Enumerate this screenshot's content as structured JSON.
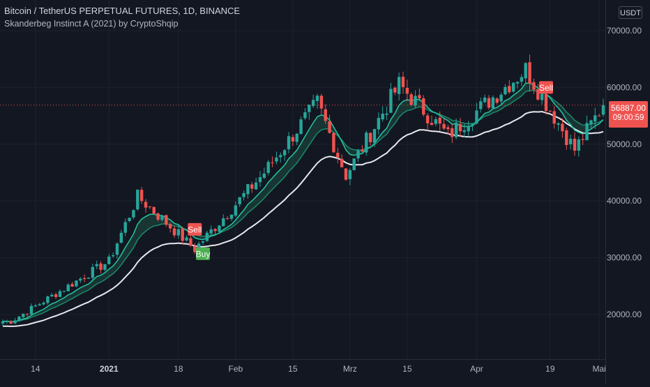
{
  "header": {
    "symbol_title": "Bitcoin / TetherUS PERPETUAL FUTURES, 1D, BINANCE",
    "indicator_title": "Skanderbeg Instinct A (2021) by CryptoShqip",
    "currency_button": "USDT"
  },
  "price_tag": {
    "price": "56887.00",
    "countdown": "09:00:59",
    "color": "#ef5350"
  },
  "colors": {
    "background": "#131722",
    "up_candle": "#26a69a",
    "down_candle": "#ef5350",
    "fast_ema": "#26c6a2",
    "slow_ema": "#1b8a6b",
    "baseline": "#e8e8ee",
    "fill": "#1f5a4a",
    "buy_label": "#4caf50",
    "sell_label": "#f05350"
  },
  "chart_data": {
    "type": "candlestick",
    "y_ticks": [
      "70000.00",
      "60000.00",
      "50000.00",
      "40000.00",
      "30000.00",
      "20000.00"
    ],
    "x_ticks": [
      "14",
      "2021",
      "18",
      "Feb",
      "15",
      "Mrz",
      "15",
      "Apr",
      "19",
      "Mai"
    ],
    "ylim": [
      15000,
      72000
    ],
    "current_price": 56887,
    "key_closes": [
      {
        "date": "2020-12-08",
        "close": 18800
      },
      {
        "date": "2020-12-17",
        "close": 22800
      },
      {
        "date": "2021-01-01",
        "close": 29400
      },
      {
        "date": "2021-01-08",
        "close": 40800
      },
      {
        "date": "2021-01-22",
        "close": 31500
      },
      {
        "date": "2021-02-08",
        "close": 45000
      },
      {
        "date": "2021-02-21",
        "close": 57300
      },
      {
        "date": "2021-02-28",
        "close": 44500
      },
      {
        "date": "2021-03-13",
        "close": 60500
      },
      {
        "date": "2021-03-25",
        "close": 51500
      },
      {
        "date": "2021-04-13",
        "close": 63200
      },
      {
        "date": "2021-04-25",
        "close": 49000
      },
      {
        "date": "2021-05-02",
        "close": 56887
      }
    ],
    "signals": [
      {
        "label": "Sell",
        "date": "2021-01-22",
        "price": 35000,
        "type": "sell"
      },
      {
        "label": "Buy",
        "date": "2021-01-24",
        "price": 30700,
        "type": "buy"
      },
      {
        "label": "Sell",
        "date": "2021-04-18",
        "price": 60000,
        "type": "sell"
      }
    ],
    "grid": true
  }
}
